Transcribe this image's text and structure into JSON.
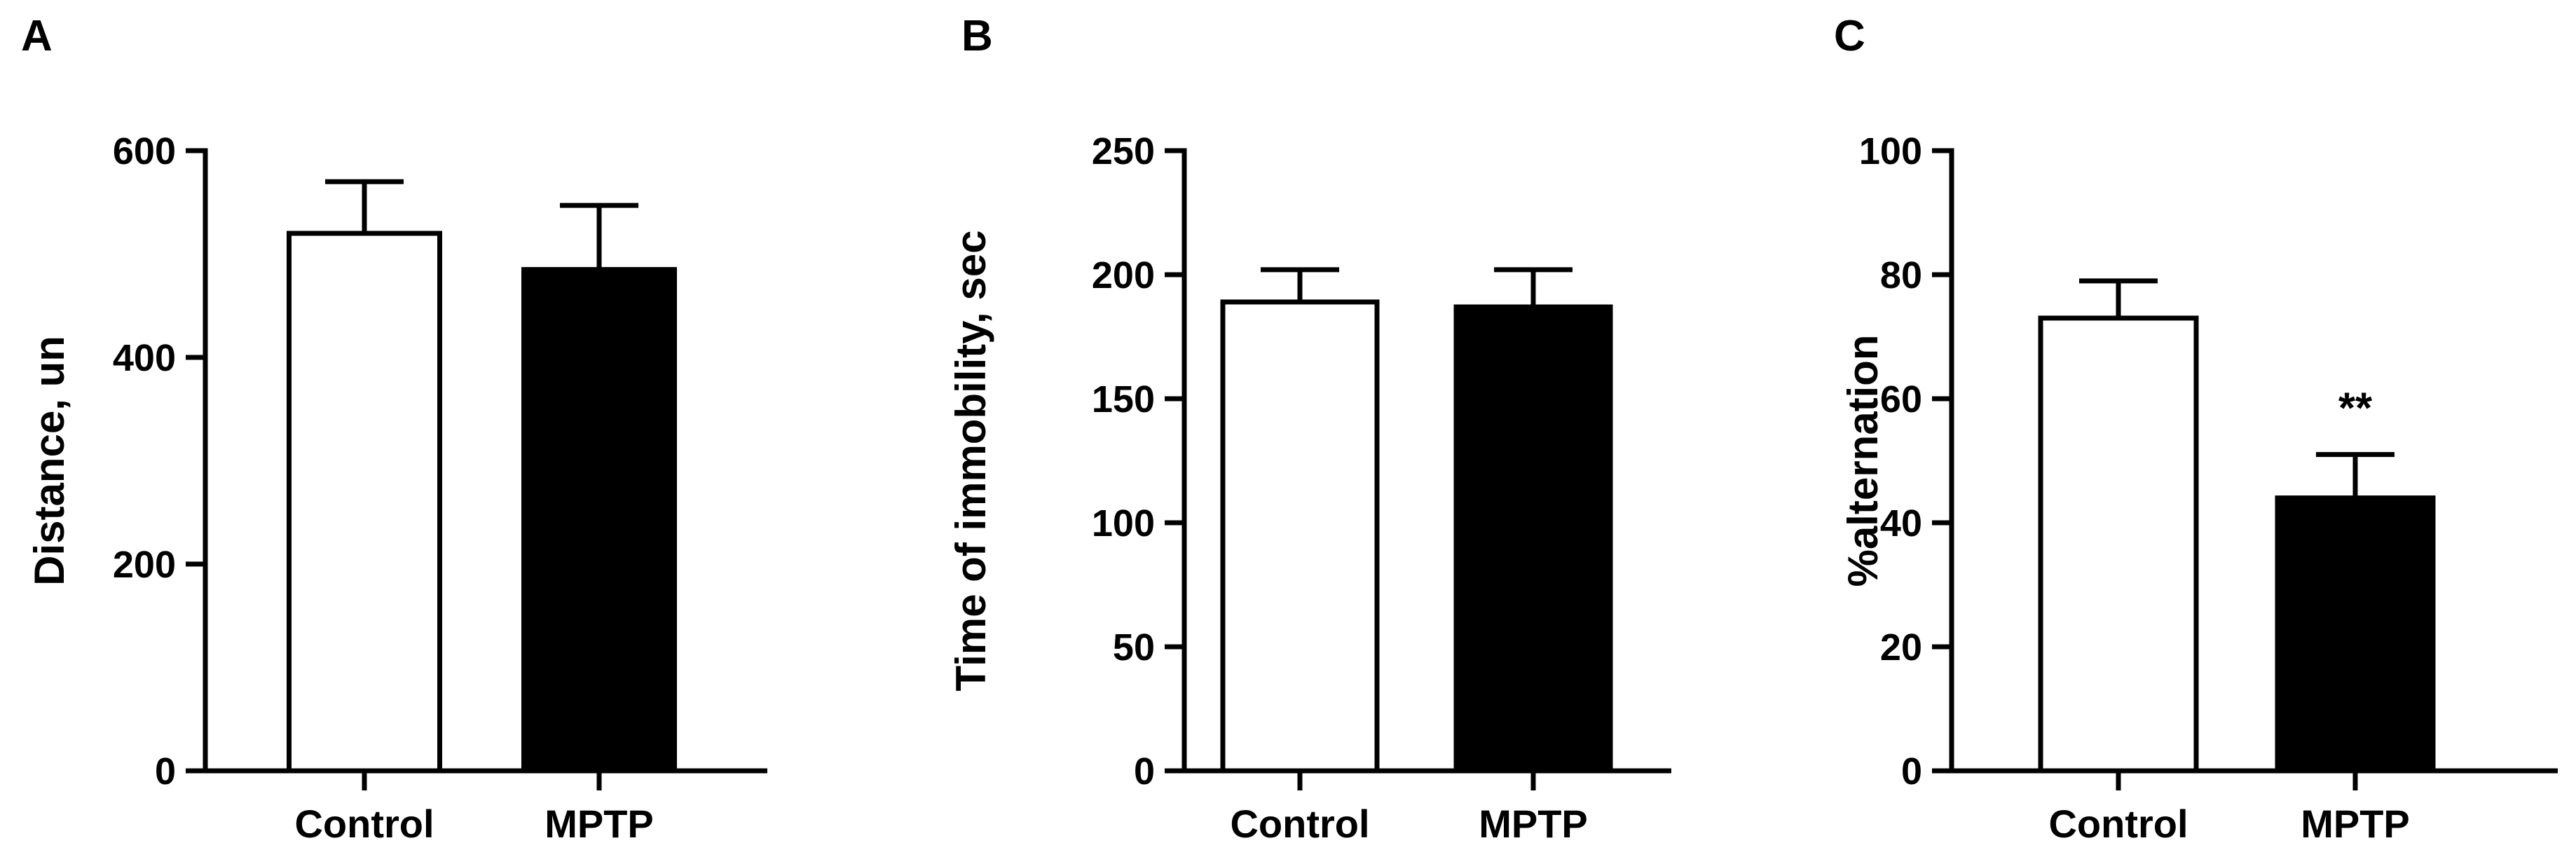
{
  "chart_data": [
    {
      "type": "bar",
      "panel_label": "A",
      "ylabel": "Distance, un",
      "ylim": [
        0,
        600
      ],
      "yticks": [
        "0",
        "200",
        "400",
        "600"
      ],
      "categories": [
        "Control",
        "MPTP"
      ],
      "values": [
        520,
        485
      ],
      "errors": [
        50,
        62
      ],
      "bar_colors": [
        "#ffffff",
        "#000000"
      ],
      "annotations": [
        "",
        ""
      ]
    },
    {
      "type": "bar",
      "panel_label": "B",
      "ylabel": "Time of immobility, sec",
      "ylim": [
        0,
        250
      ],
      "yticks": [
        "0",
        "50",
        "100",
        "150",
        "200",
        "250"
      ],
      "categories": [
        "Control",
        "MPTP"
      ],
      "values": [
        189,
        187
      ],
      "errors": [
        13,
        15
      ],
      "bar_colors": [
        "#ffffff",
        "#000000"
      ],
      "annotations": [
        "",
        ""
      ]
    },
    {
      "type": "bar",
      "panel_label": "C",
      "ylabel": "%alternation",
      "ylim": [
        0,
        100
      ],
      "yticks": [
        "0",
        "20",
        "40",
        "60",
        "80",
        "100"
      ],
      "categories": [
        "Control",
        "MPTP"
      ],
      "values": [
        73,
        44
      ],
      "errors": [
        6,
        7
      ],
      "bar_colors": [
        "#ffffff",
        "#000000"
      ],
      "annotations": [
        "",
        "**"
      ]
    }
  ]
}
